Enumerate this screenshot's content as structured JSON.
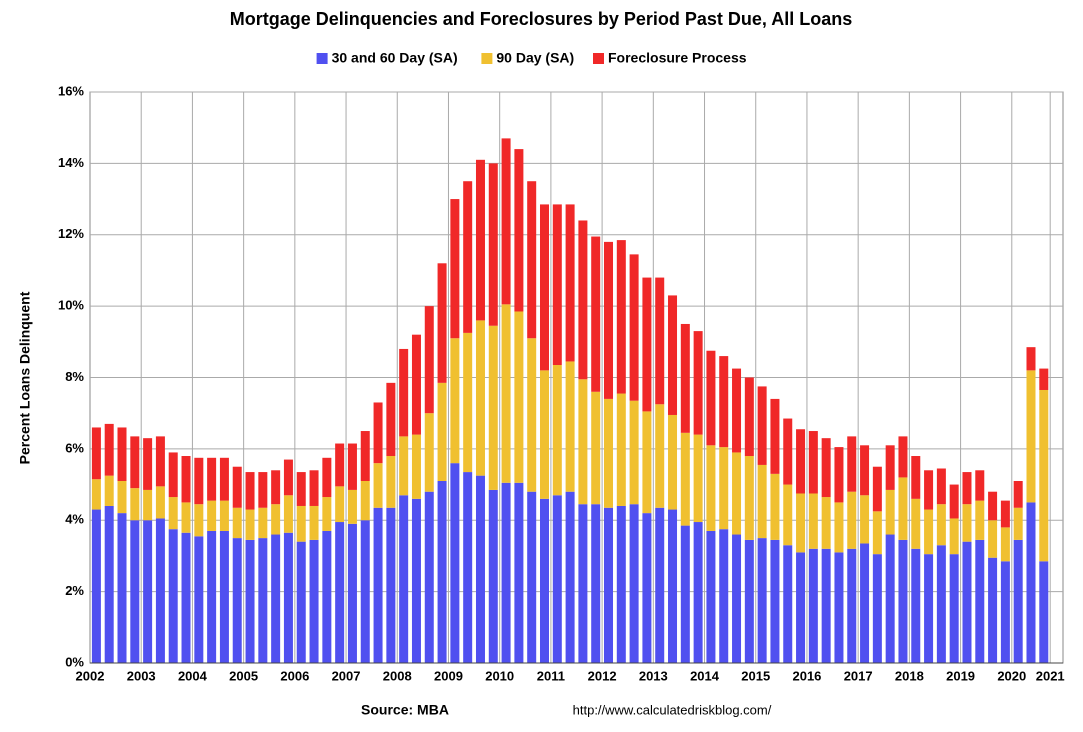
{
  "chart_data": {
    "type": "stacked_bar",
    "title": "Mortgage Delinquencies and Foreclosures by Period Past Due, All Loans",
    "y_label": "Percent Loans Delinquent",
    "source": "Source: MBA",
    "url": "http://www.calculatedriskblog.com/",
    "categories": [
      "2002",
      null,
      null,
      null,
      "2003",
      null,
      null,
      null,
      "2004",
      null,
      null,
      null,
      "2005",
      null,
      null,
      null,
      "2006",
      null,
      null,
      null,
      "2007",
      null,
      null,
      null,
      "2008",
      null,
      null,
      null,
      "2009",
      null,
      null,
      null,
      "2010",
      null,
      null,
      null,
      "2011",
      null,
      null,
      null,
      "2012",
      null,
      null,
      null,
      "2013",
      null,
      null,
      null,
      "2014",
      null,
      null,
      null,
      "2015",
      null,
      null,
      null,
      "2016",
      null,
      null,
      null,
      "2017",
      null,
      null,
      null,
      "2018",
      null,
      null,
      null,
      "2019",
      null,
      null,
      null,
      "2020",
      null,
      null,
      "2021"
    ],
    "series": [
      {
        "name": "30 and 60 Day (SA)",
        "color": "#5050f0",
        "values": [
          4.3,
          4.4,
          4.2,
          4.0,
          4.0,
          4.05,
          3.75,
          3.65,
          3.55,
          3.7,
          3.7,
          3.5,
          3.45,
          3.5,
          3.6,
          3.65,
          3.4,
          3.45,
          3.7,
          3.95,
          3.9,
          4.0,
          4.35,
          4.35,
          4.7,
          4.6,
          4.8,
          5.1,
          5.6,
          5.35,
          5.25,
          4.85,
          5.05,
          5.05,
          4.8,
          4.6,
          4.7,
          4.8,
          4.45,
          4.45,
          4.35,
          4.4,
          4.45,
          4.2,
          4.35,
          4.3,
          3.85,
          3.95,
          3.7,
          3.75,
          3.6,
          3.45,
          3.5,
          3.45,
          3.3,
          3.1,
          3.2,
          3.2,
          3.1,
          3.2,
          3.35,
          3.05,
          3.6,
          3.45,
          3.2,
          3.05,
          3.3,
          3.05,
          3.4,
          3.45,
          2.95,
          2.85,
          3.45,
          4.5,
          2.85,
          null
        ]
      },
      {
        "name": "90 Day (SA)",
        "color": "#f0c030",
        "values": [
          0.85,
          0.85,
          0.9,
          0.9,
          0.85,
          0.9,
          0.9,
          0.85,
          0.9,
          0.85,
          0.85,
          0.85,
          0.85,
          0.85,
          0.85,
          1.05,
          1.0,
          0.95,
          0.95,
          1.0,
          0.95,
          1.1,
          1.25,
          1.45,
          1.65,
          1.8,
          2.2,
          2.75,
          3.5,
          3.9,
          4.35,
          4.6,
          5.0,
          4.8,
          4.3,
          3.6,
          3.65,
          3.65,
          3.5,
          3.15,
          3.05,
          3.15,
          2.9,
          2.85,
          2.9,
          2.65,
          2.6,
          2.45,
          2.4,
          2.3,
          2.3,
          2.35,
          2.05,
          1.85,
          1.7,
          1.65,
          1.55,
          1.45,
          1.4,
          1.6,
          1.35,
          1.2,
          1.25,
          1.75,
          1.4,
          1.25,
          1.15,
          1.0,
          1.05,
          1.1,
          1.05,
          0.95,
          0.9,
          3.7,
          4.8,
          null
        ]
      },
      {
        "name": "Foreclosure Process",
        "color": "#f02828",
        "values": [
          1.45,
          1.45,
          1.5,
          1.45,
          1.45,
          1.4,
          1.25,
          1.3,
          1.3,
          1.2,
          1.2,
          1.15,
          1.05,
          1.0,
          0.95,
          1.0,
          0.95,
          1.0,
          1.1,
          1.2,
          1.3,
          1.4,
          1.7,
          2.05,
          2.45,
          2.8,
          3.0,
          3.35,
          3.9,
          4.25,
          4.5,
          4.55,
          4.65,
          4.55,
          4.4,
          4.65,
          4.5,
          4.4,
          4.45,
          4.35,
          4.4,
          4.3,
          4.1,
          3.75,
          3.55,
          3.35,
          3.05,
          2.9,
          2.65,
          2.55,
          2.35,
          2.2,
          2.2,
          2.1,
          1.85,
          1.8,
          1.75,
          1.65,
          1.55,
          1.55,
          1.4,
          1.25,
          1.25,
          1.15,
          1.2,
          1.1,
          1.0,
          0.95,
          0.9,
          0.85,
          0.8,
          0.75,
          0.75,
          0.65,
          0.6,
          null
        ]
      }
    ],
    "ylim": [
      0,
      16
    ],
    "yticks": [
      {
        "value": 0,
        "label": "0%"
      },
      {
        "value": 2,
        "label": "2%"
      },
      {
        "value": 4,
        "label": "4%"
      },
      {
        "value": 6,
        "label": "6%"
      },
      {
        "value": 8,
        "label": "8%"
      },
      {
        "value": 10,
        "label": "10%"
      },
      {
        "value": 12,
        "label": "12%"
      },
      {
        "value": 14,
        "label": "14%"
      },
      {
        "value": 16,
        "label": "16%"
      }
    ],
    "grid": true
  }
}
